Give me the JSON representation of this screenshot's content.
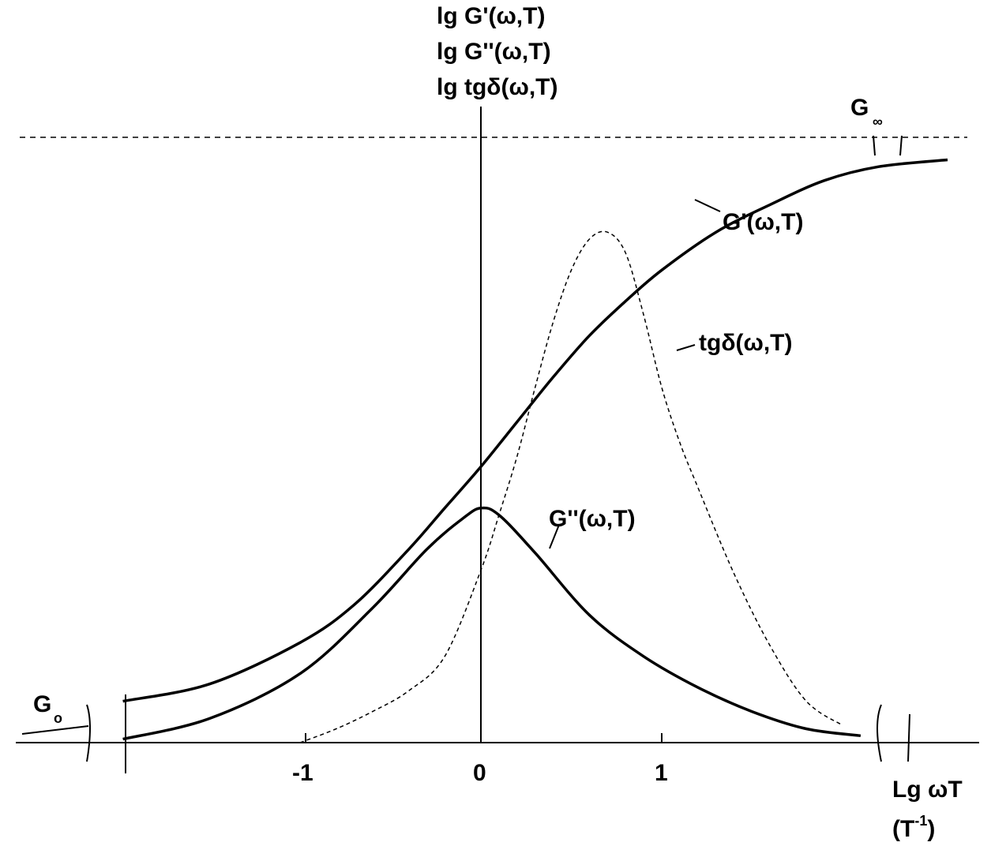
{
  "chart_data": {
    "type": "line",
    "title": "",
    "y_axis_labels": [
      "lg G'(ω,T)",
      "lg G''(ω,T)",
      "lg tgδ(ω,T)"
    ],
    "x_axis_label": "Lg ωT",
    "x_axis_unit": "(T",
    "x_axis_unit_sup": "-1",
    "x_axis_unit_close": ")",
    "x_ticks": [
      -1,
      0,
      1
    ],
    "x_tick_labels": [
      "-1",
      "0",
      "1"
    ],
    "xlim": [
      -2.0,
      2.0
    ],
    "asymptote_labels": {
      "low_main": "G",
      "low_sub": "o",
      "high_main": "G",
      "high_sub": "∞"
    },
    "series": [
      {
        "name": "G'(ω,T)",
        "style": "solid",
        "x": [
          -1.98,
          -1.5,
          -1.0,
          -0.7,
          -0.4,
          -0.2,
          0.0,
          0.2,
          0.4,
          0.6,
          0.8,
          1.0,
          1.3,
          1.6,
          1.9,
          2.2,
          2.6
        ],
        "y": [
          0.12,
          0.17,
          0.29,
          0.4,
          0.56,
          0.68,
          0.8,
          0.93,
          1.06,
          1.18,
          1.28,
          1.37,
          1.48,
          1.56,
          1.63,
          1.67,
          1.69
        ]
      },
      {
        "name": "G''(ω,T)",
        "style": "solid",
        "x": [
          -1.98,
          -1.5,
          -1.0,
          -0.6,
          -0.3,
          -0.1,
          0.0,
          0.1,
          0.3,
          0.6,
          0.9,
          1.2,
          1.5,
          1.8,
          2.1
        ],
        "y": [
          0.01,
          0.07,
          0.2,
          0.39,
          0.56,
          0.65,
          0.68,
          0.66,
          0.55,
          0.37,
          0.25,
          0.16,
          0.09,
          0.04,
          0.02
        ]
      },
      {
        "name": "tgδ(ω,T)",
        "style": "dashed",
        "x": [
          -1.0,
          -0.8,
          -0.6,
          -0.4,
          -0.2,
          0.0,
          0.1,
          0.2,
          0.3,
          0.4,
          0.5,
          0.6,
          0.7,
          0.8,
          0.9,
          1.0,
          1.1,
          1.2,
          1.4,
          1.6,
          1.8,
          2.0
        ],
        "y": [
          0.0,
          0.04,
          0.09,
          0.15,
          0.25,
          0.5,
          0.66,
          0.83,
          1.03,
          1.22,
          1.37,
          1.46,
          1.48,
          1.42,
          1.24,
          1.03,
          0.87,
          0.74,
          0.49,
          0.28,
          0.12,
          0.05
        ]
      }
    ],
    "asymptote_high_y": 1.75,
    "asymptote_low_y": 0.0,
    "grid": false,
    "legend": "inline labels"
  }
}
